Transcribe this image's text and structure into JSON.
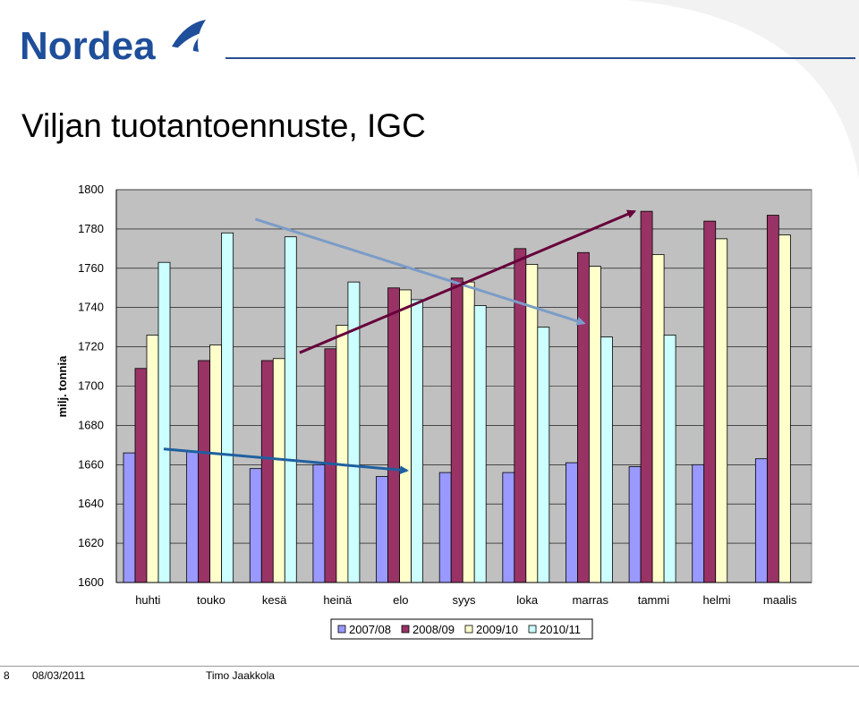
{
  "header": {
    "brand": "Nordea",
    "title": "Viljan tuotantoennuste, IGC"
  },
  "colors": {
    "series": [
      "#9999ff",
      "#993366",
      "#ffffcc",
      "#ccffff"
    ],
    "plot_bg": "#c0c0c0",
    "arrow_light": "#7b9cc7",
    "arrow_dark": "#1f5fa0",
    "arrow_maroon": "#66003a"
  },
  "chart_data": {
    "type": "bar",
    "title": "",
    "xlabel": "",
    "ylabel": "milj. tonnia",
    "ylim": [
      1600,
      1800
    ],
    "yticks": [
      1600,
      1620,
      1640,
      1660,
      1680,
      1700,
      1720,
      1740,
      1760,
      1780,
      1800
    ],
    "categories": [
      "huhti",
      "touko",
      "kesä",
      "heinä",
      "elo",
      "syys",
      "loka",
      "marras",
      "tammi",
      "helmi",
      "maalis"
    ],
    "series": [
      {
        "name": "2007/08",
        "values": [
          1666,
          1667,
          1658,
          1660,
          1654,
          1656,
          1656,
          1661,
          1659,
          1660,
          1663
        ]
      },
      {
        "name": "2008/09",
        "values": [
          1709,
          1713,
          1713,
          1719,
          1750,
          1755,
          1770,
          1768,
          1789,
          1784,
          1787
        ]
      },
      {
        "name": "2009/10",
        "values": [
          1726,
          1721,
          1714,
          1731,
          1749,
          1753,
          1762,
          1761,
          1767,
          1775,
          1777
        ]
      },
      {
        "name": "2010/11",
        "values": [
          1763,
          1778,
          1776,
          1753,
          1744,
          1741,
          1730,
          1725,
          1726,
          null,
          null
        ]
      }
    ],
    "legend_position": "bottom",
    "grid": true
  },
  "footer": {
    "page": "8",
    "date": "08/03/2011",
    "author": "Timo Jaakkola"
  }
}
